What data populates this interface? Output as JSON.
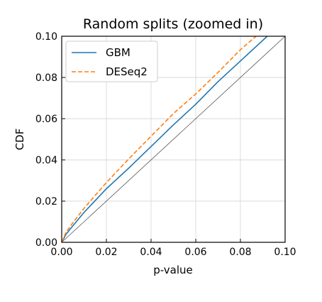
{
  "chart_data": {
    "type": "line",
    "title": "Random splits (zoomed in)",
    "xlabel": "p-value",
    "ylabel": "CDF",
    "xlim": [
      0,
      0.1
    ],
    "ylim": [
      0,
      0.1
    ],
    "x_ticks": [
      "0.00",
      "0.02",
      "0.04",
      "0.06",
      "0.08",
      "0.10"
    ],
    "y_ticks": [
      "0.00",
      "0.02",
      "0.04",
      "0.06",
      "0.08",
      "0.10"
    ],
    "grid": true,
    "legend_position": "top-left",
    "reference_line": {
      "x": [
        0,
        0.1
      ],
      "y": [
        0,
        0.1
      ],
      "color": "#555555"
    },
    "series": [
      {
        "name": "GBM",
        "color": "#1f77b4",
        "style": "solid",
        "x": [
          0,
          0.002,
          0.005,
          0.01,
          0.02,
          0.03,
          0.04,
          0.05,
          0.06,
          0.07,
          0.08,
          0.092
        ],
        "y": [
          0,
          0.004,
          0.008,
          0.0145,
          0.026,
          0.036,
          0.0465,
          0.057,
          0.067,
          0.078,
          0.088,
          0.1
        ]
      },
      {
        "name": "DESeq2",
        "color": "#ff7f0e",
        "style": "dashed",
        "x": [
          0,
          0.002,
          0.005,
          0.01,
          0.02,
          0.03,
          0.04,
          0.05,
          0.06,
          0.07,
          0.08,
          0.087
        ],
        "y": [
          0,
          0.005,
          0.0095,
          0.0165,
          0.029,
          0.0405,
          0.0515,
          0.0625,
          0.072,
          0.0825,
          0.0935,
          0.1
        ]
      }
    ]
  }
}
